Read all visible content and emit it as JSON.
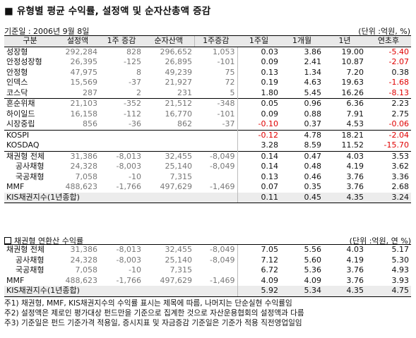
{
  "title": "■ 유형별 평균 수익률, 설정액 및 순자산총액 증감",
  "base_date": "기준일 : 2006년 9월 8일",
  "unit": "(단위 :억원, %)",
  "headers": [
    "구분",
    "설정액",
    "1주 증감",
    "순자산액",
    "1주증감",
    "1주일",
    "1개월",
    "1년",
    "연초후"
  ],
  "rows1": [
    {
      "label": "성장형",
      "v": [
        "292,284",
        "828",
        "296,652",
        "1,053",
        "0.03",
        "3.86",
        "19.00",
        "-5.40"
      ]
    },
    {
      "label": "안정성장형",
      "v": [
        "26,395",
        "-125",
        "26,895",
        "-101",
        "0.09",
        "2.41",
        "10.87",
        "-2.07"
      ]
    },
    {
      "label": "안정형",
      "v": [
        "47,975",
        "8",
        "49,239",
        "75",
        "0.13",
        "1.34",
        "7.20",
        "0.38"
      ]
    },
    {
      "label": "인덱스",
      "v": [
        "15,569",
        "-37",
        "21,927",
        "72",
        "0.19",
        "4.63",
        "19.63",
        "-1.68"
      ]
    },
    {
      "label": "코스닥",
      "v": [
        "287",
        "2",
        "231",
        "5",
        "1.80",
        "5.45",
        "16.26",
        "-8.13"
      ]
    }
  ],
  "rows2": [
    {
      "label": "혼순위채",
      "v": [
        "21,103",
        "-352",
        "21,512",
        "-348",
        "0.05",
        "0.96",
        "6.36",
        "2.23"
      ]
    },
    {
      "label": "하이일드",
      "v": [
        "16,158",
        "-112",
        "16,770",
        "-101",
        "0.09",
        "0.88",
        "7.91",
        "2.75"
      ]
    },
    {
      "label": "시장중립",
      "v": [
        "856",
        "-36",
        "862",
        "-37",
        "-0.10",
        "0.37",
        "4.53",
        "-0.06"
      ]
    }
  ],
  "rows_idx": [
    {
      "label": "KOSPI",
      "v": [
        "",
        "",
        "",
        "",
        "-0.12",
        "4.78",
        "18.21",
        "-2.04"
      ]
    },
    {
      "label": "KOSDAQ",
      "v": [
        "",
        "",
        "",
        "",
        "3.28",
        "8.59",
        "11.52",
        "-15.70"
      ]
    }
  ],
  "rows3": [
    {
      "label": "채권형 전체",
      "v": [
        "31,386",
        "-8,013",
        "32,455",
        "-8,049",
        "0.14",
        "0.47",
        "4.03",
        "3.53"
      ]
    },
    {
      "label": "공사채형",
      "v": [
        "24,328",
        "-8,003",
        "25,140",
        "-8,049",
        "0.14",
        "0.48",
        "4.19",
        "3.62"
      ]
    },
    {
      "label": "국공채형",
      "v": [
        "7,058",
        "-10",
        "7,315",
        "",
        "0.13",
        "0.46",
        "3.76",
        "3.36"
      ]
    },
    {
      "label": "MMF",
      "v": [
        "488,623",
        "-1,766",
        "497,629",
        "-1,469",
        "0.07",
        "0.35",
        "3.76",
        "2.68"
      ]
    },
    {
      "label": "KIS채권지수(1년종합)",
      "v": [
        "",
        "",
        "",
        "",
        "0.11",
        "0.45",
        "4.35",
        "3.24"
      ]
    }
  ],
  "section2_title": "채권형 연환산 수익률",
  "section2_unit": "(단위 :억원, 연 %)",
  "rows4": [
    {
      "label": "채권형 전체",
      "v": [
        "31,386",
        "-8,013",
        "32,455",
        "-8,049",
        "7.05",
        "5.56",
        "4.03",
        "5.17"
      ]
    },
    {
      "label": "공사채형",
      "v": [
        "24,328",
        "-8,003",
        "25,140",
        "-8,049",
        "7.12",
        "5.60",
        "4.19",
        "5.30"
      ]
    },
    {
      "label": "국공채형",
      "v": [
        "7,058",
        "-10",
        "7,315",
        "",
        "6.72",
        "5.36",
        "3.76",
        "4.93"
      ]
    },
    {
      "label": "MMF",
      "v": [
        "488,623",
        "-1,766",
        "497,629",
        "-1,469",
        "4.09",
        "4.09",
        "3.76",
        "3.93"
      ]
    },
    {
      "label": "KIS채권지수(1년종합)",
      "v": [
        "",
        "",
        "",
        "",
        "5.92",
        "5.34",
        "4.35",
        "4.75"
      ]
    }
  ],
  "notes": [
    "주1) 채권형, MMF, KIS채권지수의 수익률 표시는 제목에 따름, 나머지는 단순실현 수익률임",
    "주2) 설정액은 제로인 평가대상 펀드만을 기준으로 집계한 것으로  자산운용협회의 설정액과 다름",
    "주3) 기준일은 펀드 기준가격 적용일, 증시지표 및 자금증감 기준일은 기준가 적용 직전영업일임"
  ]
}
